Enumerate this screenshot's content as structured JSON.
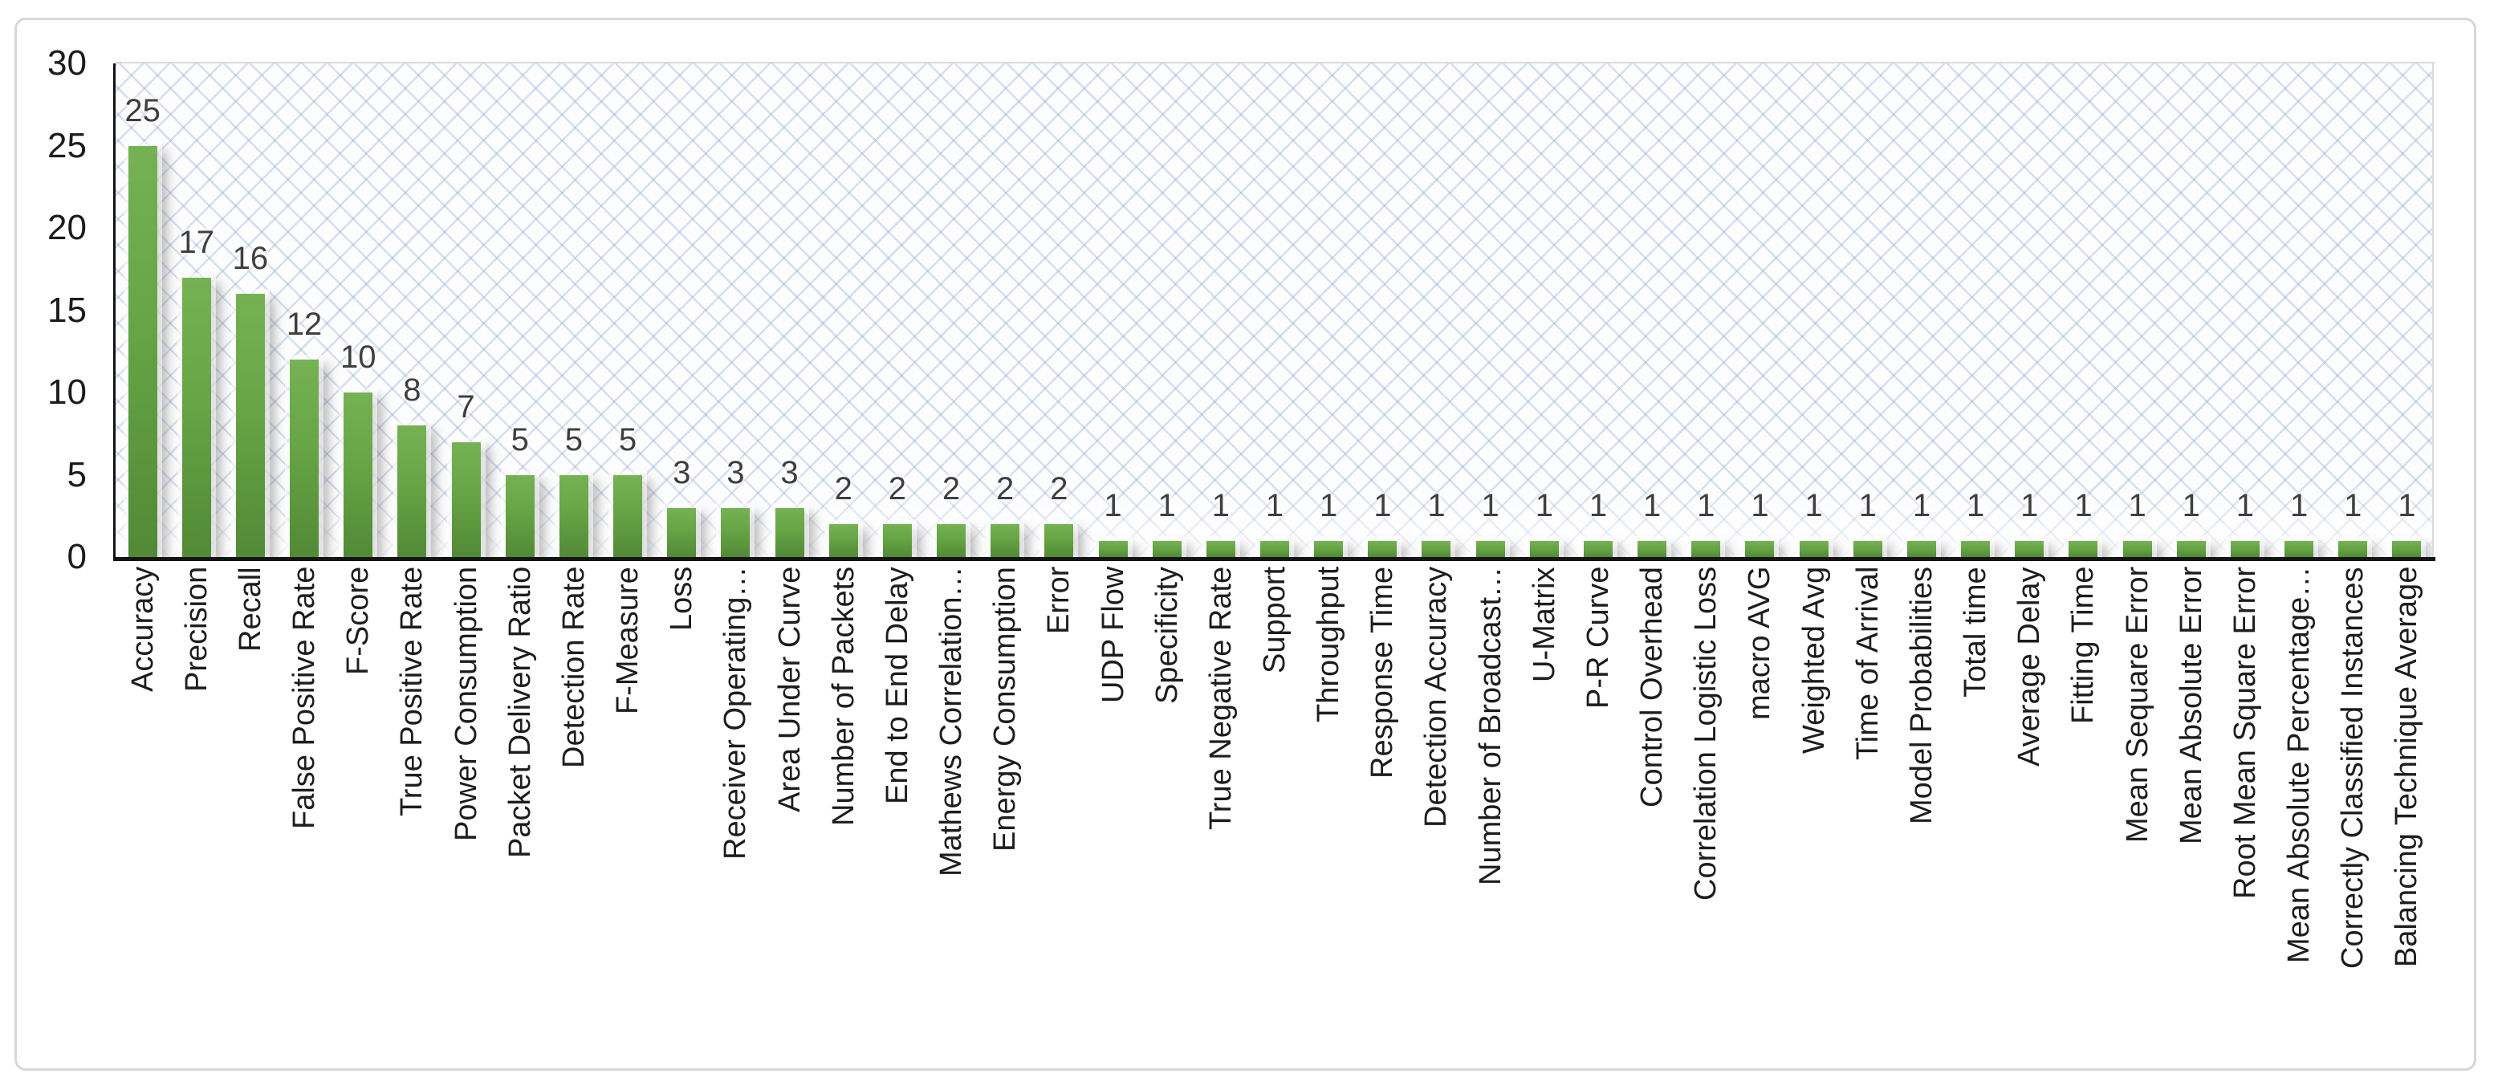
{
  "chart_data": {
    "type": "bar",
    "title": "",
    "xlabel": "",
    "ylabel": "",
    "ylim": [
      0,
      30
    ],
    "yticks": [
      0,
      5,
      10,
      15,
      20,
      25,
      30
    ],
    "grid": false,
    "legend": "none",
    "categories": [
      "Accuracy",
      "Precision",
      "Recall",
      "False Positive Rate",
      "F-Score",
      "True Positive Rate",
      "Power Consumption",
      "Packet Delivery Ratio",
      "Detection Rate",
      "F-Measure",
      "Loss",
      "Receiver Operating…",
      "Area Under Curve",
      "Number of Packets",
      "End to End Delay",
      "Mathews Correlation…",
      "Energy Consumption",
      "Error",
      "UDP Flow",
      "Specificity",
      "True Negative Rate",
      "Support",
      "Throughput",
      "Response Time",
      "Detection Accuracy",
      "Number of Broadcast…",
      "U-Matrix",
      "P-R Curve",
      "Control Overhead",
      "Correlation Logistic Loss",
      "macro AVG",
      "Weighted Avg",
      "Time of Arrival",
      "Model Probabilities",
      "Total time",
      "Average Delay",
      "Fitting Time",
      "Mean Sequare Error",
      "Mean Absolute Error",
      "Root Mean Square Error",
      "Mean Absolute Percentage…",
      "Correctly Classified Instances",
      "Balancing Technique Average"
    ],
    "values": [
      25,
      17,
      16,
      12,
      10,
      8,
      7,
      5,
      5,
      5,
      3,
      3,
      3,
      2,
      2,
      2,
      2,
      2,
      1,
      1,
      1,
      1,
      1,
      1,
      1,
      1,
      1,
      1,
      1,
      1,
      1,
      1,
      1,
      1,
      1,
      1,
      1,
      1,
      1,
      1,
      1,
      1,
      1
    ],
    "data_labels_shown": true
  },
  "style": {
    "bar_color_top": "#76b254",
    "bar_color_bottom": "#528936",
    "axis_color": "#141414",
    "tick_label_color": "#1c1c1c",
    "data_label_color": "#3f3f3f",
    "pattern_color": "#7d98c8",
    "card_border_color": "#d7d7d7",
    "plot_border_color": "#dadada"
  }
}
